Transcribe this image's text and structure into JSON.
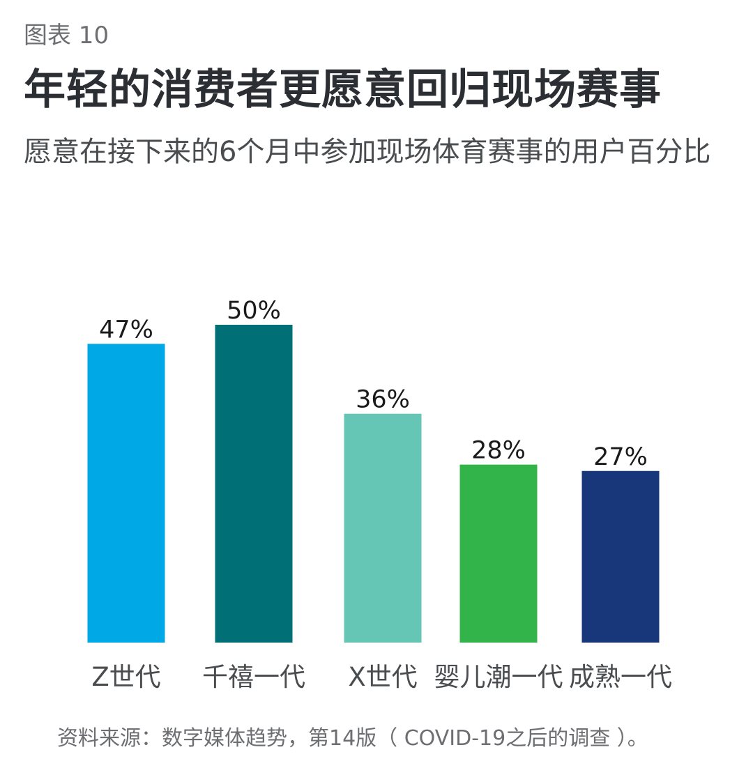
{
  "header": {
    "figure_label": "图表 10",
    "title": "年轻的消费者更愿意回归现场赛事",
    "subtitle": "愿意在接下来的6个月中参加现场体育赛事的用户百分比"
  },
  "chart_data": {
    "type": "bar",
    "categories": [
      "Z世代",
      "千禧一代",
      "X世代",
      "婴儿潮一代",
      "成熟一代"
    ],
    "values": [
      47,
      50,
      36,
      28,
      27
    ],
    "value_labels": [
      "47%",
      "50%",
      "36%",
      "28%",
      "27%"
    ],
    "colors": [
      "#00a9e6",
      "#006f76",
      "#66c6b6",
      "#32b44a",
      "#17377a"
    ],
    "unit": "%",
    "ylim": [
      0,
      50
    ],
    "grid": false,
    "legend": "none"
  },
  "footer": {
    "source": "资料来源：数字媒体趋势，第14版（ COVID-19之后的调查 ）。"
  }
}
